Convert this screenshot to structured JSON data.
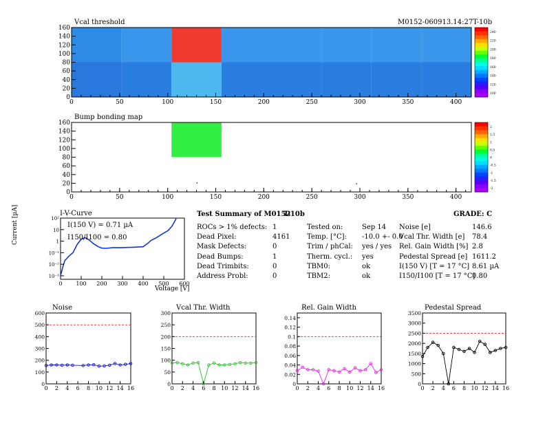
{
  "header": {
    "vcal_title": "Vcal threshold",
    "module_id": "M0152-060913.14:27T-10b",
    "bump_title": "Bump bonding map"
  },
  "maps": {
    "x_ticks": [
      "0",
      "50",
      "100",
      "150",
      "200",
      "250",
      "300",
      "350",
      "400"
    ],
    "y_ticks": [
      "0",
      "20",
      "40",
      "60",
      "80",
      "100",
      "120",
      "140",
      "160"
    ],
    "vcal_palette_labels": [
      "240",
      "220",
      "200",
      "180",
      "160",
      "140",
      "120",
      "100"
    ],
    "bump_palette_labels": [
      "2",
      "1.5",
      "1",
      "0.5",
      "0",
      "-0.5",
      "-1",
      "-1.5",
      "-2"
    ]
  },
  "iv": {
    "title": "I-V-Curve",
    "xlabel": "Voltage [V]",
    "ylabel": "Current [µA]",
    "anno1": "I(150 V) = 0.71 µA",
    "anno2": "I150/I100 = 0.80",
    "x_ticks": [
      "0",
      "100",
      "200",
      "300",
      "400",
      "500",
      "600"
    ],
    "y_ticks": [
      "10²",
      "10",
      "1",
      "10⁻¹",
      "10⁻²",
      "10⁻³"
    ]
  },
  "summary": {
    "title": "Test Summary of M0152",
    "subtitle": "T-10b",
    "grade": "GRADE:  C",
    "col1": [
      {
        "label": "ROCs > 1% defects:",
        "value": "1"
      },
      {
        "label": "Dead Pixel:",
        "value": "4161"
      },
      {
        "label": "Mask Defects:",
        "value": "0"
      },
      {
        "label": "Dead Bumps:",
        "value": "1"
      },
      {
        "label": "Dead Trimbits:",
        "value": "0"
      },
      {
        "label": "Address Probl:",
        "value": "0"
      }
    ],
    "col2": [
      {
        "label": "Tested on:",
        "value": "Sep 14"
      },
      {
        "label": "Temp. [°C]:",
        "value": "-10.0 +- 0.0"
      },
      {
        "label": "Trim / phCal:",
        "value": "yes / yes"
      },
      {
        "label": "Therm. cycl.:",
        "value": "yes"
      },
      {
        "label": "TBM0:",
        "value": "ok"
      },
      {
        "label": "TBM2:",
        "value": "ok"
      }
    ],
    "col3": [
      {
        "label": "Noise [e]",
        "value": "146.6"
      },
      {
        "label": "Vcal Thr. Width [e]",
        "value": "78.4"
      },
      {
        "label": "Rel. Gain Width [%]",
        "value": "2.8"
      },
      {
        "label": "Pedestal Spread [e]",
        "value": "1611.2"
      },
      {
        "label": "I(150 V) [T = 17 °C]",
        "value": "8.61 µA"
      },
      {
        "label": "I150/I100  [T = 17 °C]",
        "value": "0.80"
      }
    ]
  },
  "chart_data": [
    {
      "type": "heatmap",
      "title": "Vcal threshold",
      "xlim": [
        0,
        416
      ],
      "ylim": [
        0,
        160
      ],
      "grid": {
        "cols": 8,
        "rows": 2
      },
      "cells_top": [
        "#2e8be6",
        "#3a96ea",
        "#ee3a30",
        "#3a96ea",
        "#3a96ea",
        "#3a96ea",
        "#3a96ea",
        "#3a96ea"
      ],
      "cells_bottom": [
        "#2878de",
        "#2a7ee0",
        "#4bb8f0",
        "#2a7ee0",
        "#2a7ee0",
        "#2a7ee0",
        "#2a7ee0",
        "#2a7ee0"
      ]
    },
    {
      "type": "heatmap",
      "title": "Bump bonding map",
      "xlim": [
        0,
        416
      ],
      "ylim": [
        0,
        160
      ],
      "cells": [
        {
          "x0": 104,
          "x1": 156,
          "y0": 80,
          "y1": 160,
          "color": "#33ee44"
        }
      ],
      "dead_points": [
        [
          130,
          22
        ],
        [
          296,
          20
        ]
      ]
    },
    {
      "type": "line",
      "title": "I-V-Curve",
      "xlabel": "Voltage [V]",
      "ylabel": "Current [µA]",
      "xlim": [
        0,
        600
      ],
      "ylim": [
        0.0005,
        100
      ],
      "yscale": "log",
      "x": [
        0,
        10,
        20,
        40,
        60,
        80,
        100,
        120,
        140,
        160,
        180,
        200,
        220,
        250,
        300,
        350,
        400,
        420,
        440,
        460,
        480,
        500,
        520,
        540,
        560
      ],
      "y": [
        0.001,
        0.005,
        0.02,
        0.05,
        0.1,
        0.5,
        1.5,
        2.0,
        1.2,
        0.6,
        0.35,
        0.25,
        0.24,
        0.27,
        0.28,
        0.3,
        0.33,
        0.6,
        1.2,
        1.8,
        3.0,
        5.0,
        8.0,
        20.0,
        90.0
      ]
    },
    {
      "type": "line",
      "title": "Noise",
      "xlim": [
        0,
        16
      ],
      "ylim": [
        0,
        600
      ],
      "threshold": 500,
      "color": "#1111cc",
      "x": [
        0,
        1,
        2,
        3,
        4,
        5,
        7,
        8,
        9,
        10,
        11,
        12,
        13,
        14,
        15,
        16
      ],
      "values": [
        155,
        160,
        160,
        158,
        160,
        158,
        155,
        160,
        162,
        150,
        152,
        158,
        172,
        160,
        165,
        172
      ]
    },
    {
      "type": "line",
      "title": "Vcal Thr. Width",
      "xlim": [
        0,
        16
      ],
      "ylim": [
        0,
        300
      ],
      "threshold": 200,
      "color": "#33bb33",
      "x": [
        0,
        1,
        2,
        3,
        4,
        5,
        6,
        7,
        8,
        9,
        10,
        11,
        12,
        13,
        14,
        15,
        16
      ],
      "values": [
        88,
        90,
        85,
        80,
        88,
        90,
        0,
        80,
        88,
        80,
        80,
        82,
        85,
        90,
        88,
        88,
        90
      ]
    },
    {
      "type": "line",
      "title": "Rel. Gain Width",
      "xlim": [
        0,
        16
      ],
      "ylim": [
        0,
        0.15
      ],
      "threshold": 0.1,
      "color": "#ee22ee",
      "x": [
        0,
        1,
        2,
        3,
        4,
        5,
        6,
        7,
        8,
        9,
        10,
        11,
        12,
        13,
        14,
        15,
        16
      ],
      "values": [
        0.028,
        0.035,
        0.03,
        0.03,
        0.027,
        0.0,
        0.03,
        0.028,
        0.025,
        0.032,
        0.025,
        0.034,
        0.028,
        0.03,
        0.043,
        0.024,
        0.03
      ]
    },
    {
      "type": "line",
      "title": "Pedestal Spread",
      "xlim": [
        0,
        16
      ],
      "ylim": [
        0,
        3500
      ],
      "threshold": 2500,
      "color": "#000000",
      "x": [
        0,
        1,
        2,
        3,
        4,
        5,
        6,
        7,
        8,
        9,
        10,
        11,
        12,
        13,
        14,
        15,
        16
      ],
      "values": [
        1350,
        1800,
        2050,
        1900,
        1500,
        0,
        1800,
        1700,
        1600,
        1750,
        1550,
        2100,
        1950,
        1550,
        1650,
        1750,
        1800
      ]
    }
  ]
}
